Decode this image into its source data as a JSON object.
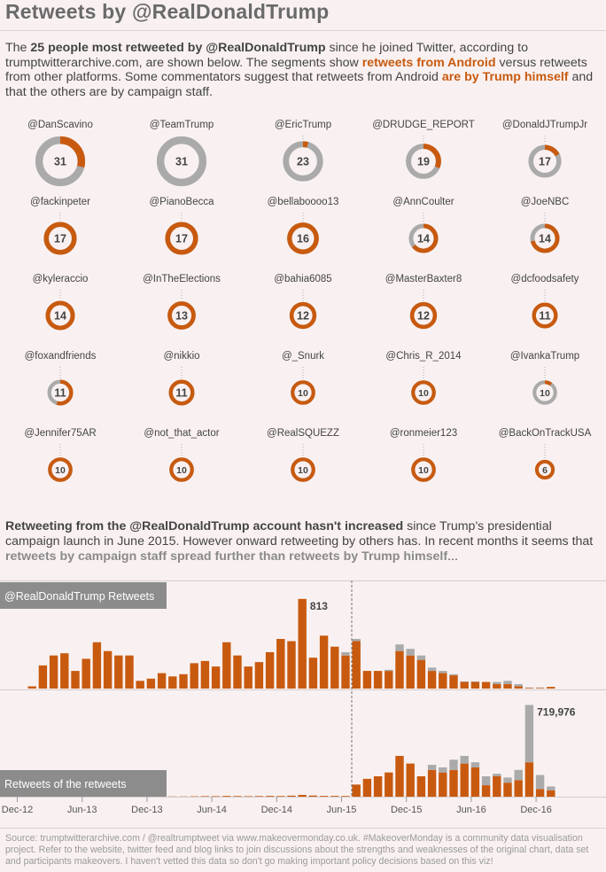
{
  "title": "Retweets by @RealDonaldTrump",
  "intro": {
    "t1": "The ",
    "b1": "25 people most retweeted by @RealDonaldTrump",
    "t2": " since he joined Twitter, according to trumptwitterarchive.com, are shown below. The segments show ",
    "o1": "retweets from Android",
    "t3": " versus retweets from other platforms. Some commentators suggest that retweets from Android ",
    "o2": "are by Trump himself",
    "t4": " and that the others are by campaign staff."
  },
  "colors": {
    "android": "#c85a0f",
    "other": "#aaaaaa",
    "text": "#444444",
    "label_bg": "#8c8c8c"
  },
  "donuts": [
    {
      "name": "@DanScavino",
      "total": 31,
      "android": 9
    },
    {
      "name": "@TeamTrump",
      "total": 31,
      "android": 0
    },
    {
      "name": "@EricTrump",
      "total": 23,
      "android": 1
    },
    {
      "name": "@DRUDGE_REPORT",
      "total": 19,
      "android": 6
    },
    {
      "name": "@DonaldJTrumpJr",
      "total": 17,
      "android": 3
    },
    {
      "name": "@fackinpeter",
      "total": 17,
      "android": 17
    },
    {
      "name": "@PianoBecca",
      "total": 17,
      "android": 17
    },
    {
      "name": "@bellaboooo13",
      "total": 16,
      "android": 16
    },
    {
      "name": "@AnnCoulter",
      "total": 14,
      "android": 9
    },
    {
      "name": "@JoeNBC",
      "total": 14,
      "android": 10
    },
    {
      "name": "@kyleraccio",
      "total": 14,
      "android": 14
    },
    {
      "name": "@InTheElections",
      "total": 13,
      "android": 13
    },
    {
      "name": "@bahia6085",
      "total": 12,
      "android": 12
    },
    {
      "name": "@MasterBaxter8",
      "total": 12,
      "android": 12
    },
    {
      "name": "@dcfoodsafety",
      "total": 11,
      "android": 11
    },
    {
      "name": "@foxandfriends",
      "total": 11,
      "android": 6
    },
    {
      "name": "@nikkio",
      "total": 11,
      "android": 11
    },
    {
      "name": "@_Snurk",
      "total": 10,
      "android": 10
    },
    {
      "name": "@Chris_R_2014",
      "total": 10,
      "android": 10
    },
    {
      "name": "@IvankaTrump",
      "total": 10,
      "android": 1
    },
    {
      "name": "@Jennifer75AR",
      "total": 10,
      "android": 10
    },
    {
      "name": "@not_that_actor",
      "total": 10,
      "android": 10
    },
    {
      "name": "@RealSQUEZZ",
      "total": 10,
      "android": 10
    },
    {
      "name": "@ronmeier123",
      "total": 10,
      "android": 10
    },
    {
      "name": "@BackOnTrackUSA",
      "total": 6,
      "android": 6
    }
  ],
  "mid_text": {
    "b1": "Retweeting from the @RealDonaldTrump account hasn't increased",
    "t1": " since Trump's presidential campaign launch in June 2015. However onward retweeting by others has. In recent months it seems that ",
    "g1": "retweets by campaign staff spread further than retweets by Trump himself",
    "t2": "..."
  },
  "chart_data": [
    {
      "type": "bar",
      "title": "@RealDonaldTrump Retweets",
      "annotation": "813",
      "months": [
        "Dec-12",
        "Jan-13",
        "Feb-13",
        "Mar-13",
        "Apr-13",
        "May-13",
        "Jun-13",
        "Jul-13",
        "Aug-13",
        "Sep-13",
        "Oct-13",
        "Nov-13",
        "Dec-13",
        "Jan-14",
        "Feb-14",
        "Mar-14",
        "Apr-14",
        "May-14",
        "Jun-14",
        "Jul-14",
        "Aug-14",
        "Sep-14",
        "Oct-14",
        "Nov-14",
        "Dec-14",
        "Jan-15",
        "Feb-15",
        "Mar-15",
        "Apr-15",
        "May-15",
        "Jun-15",
        "Jul-15",
        "Aug-15",
        "Sep-15",
        "Oct-15",
        "Nov-15",
        "Dec-15",
        "Jan-16",
        "Feb-16",
        "Mar-16",
        "Apr-16",
        "May-16",
        "Jun-16",
        "Jul-16",
        "Aug-16",
        "Sep-16",
        "Oct-16",
        "Nov-16",
        "Dec-16",
        "Jan-17"
      ],
      "series": [
        {
          "name": "Android",
          "values": [
            20,
            210,
            300,
            320,
            160,
            270,
            420,
            340,
            300,
            300,
            70,
            90,
            140,
            110,
            130,
            230,
            250,
            200,
            420,
            300,
            200,
            240,
            330,
            450,
            430,
            813,
            280,
            480,
            380,
            300,
            430,
            160,
            160,
            160,
            340,
            300,
            260,
            160,
            140,
            120,
            60,
            60,
            60,
            40,
            40,
            20,
            5,
            5,
            15,
            0
          ]
        },
        {
          "name": "Other",
          "values": [
            0,
            0,
            0,
            0,
            0,
            0,
            0,
            0,
            0,
            0,
            0,
            0,
            0,
            0,
            0,
            0,
            0,
            0,
            0,
            0,
            0,
            0,
            0,
            0,
            0,
            0,
            0,
            0,
            0,
            30,
            20,
            0,
            0,
            10,
            60,
            60,
            40,
            30,
            20,
            10,
            5,
            5,
            0,
            20,
            30,
            20,
            5,
            5,
            0,
            0
          ]
        }
      ],
      "ylim": [
        0,
        900
      ]
    },
    {
      "type": "bar",
      "title": "Retweets of the retweets",
      "annotation": "719,976",
      "months": [
        "Dec-12",
        "Jan-13",
        "Feb-13",
        "Mar-13",
        "Apr-13",
        "May-13",
        "Jun-13",
        "Jul-13",
        "Aug-13",
        "Sep-13",
        "Oct-13",
        "Nov-13",
        "Dec-13",
        "Jan-14",
        "Feb-14",
        "Mar-14",
        "Apr-14",
        "May-14",
        "Jun-14",
        "Jul-14",
        "Aug-14",
        "Sep-14",
        "Oct-14",
        "Nov-14",
        "Dec-14",
        "Jan-15",
        "Feb-15",
        "Mar-15",
        "Apr-15",
        "May-15",
        "Jun-15",
        "Jul-15",
        "Aug-15",
        "Sep-15",
        "Oct-15",
        "Nov-15",
        "Dec-15",
        "Jan-16",
        "Feb-16",
        "Mar-16",
        "Apr-16",
        "May-16",
        "Jun-16",
        "Jul-16",
        "Aug-16",
        "Sep-16",
        "Oct-16",
        "Nov-16",
        "Dec-16",
        "Jan-17"
      ],
      "series": [
        {
          "name": "Android",
          "values": [
            0,
            0,
            0,
            0,
            0,
            0,
            0,
            0,
            0,
            0,
            0,
            0,
            0,
            2000,
            2000,
            3000,
            4000,
            4000,
            6000,
            5000,
            4000,
            5000,
            6000,
            5000,
            8000,
            14000,
            9000,
            6000,
            6000,
            5000,
            95000,
            140000,
            160000,
            190000,
            320000,
            260000,
            160000,
            210000,
            190000,
            210000,
            260000,
            230000,
            90000,
            160000,
            110000,
            130000,
            270000,
            60000,
            50000,
            0
          ]
        },
        {
          "name": "Other",
          "values": [
            0,
            0,
            0,
            0,
            0,
            0,
            0,
            0,
            0,
            0,
            0,
            0,
            0,
            0,
            0,
            0,
            0,
            0,
            0,
            0,
            0,
            0,
            0,
            0,
            0,
            0,
            0,
            0,
            0,
            0,
            0,
            0,
            0,
            0,
            0,
            0,
            0,
            40000,
            40000,
            80000,
            60000,
            40000,
            70000,
            20000,
            40000,
            80000,
            450000,
            110000,
            30000,
            0
          ]
        }
      ],
      "ylim": [
        0,
        800000
      ]
    }
  ],
  "axis_ticks": [
    {
      "label": "Dec-12",
      "index": 0
    },
    {
      "label": "Jun-13",
      "index": 6
    },
    {
      "label": "Dec-13",
      "index": 12
    },
    {
      "label": "Jun-14",
      "index": 18
    },
    {
      "label": "Dec-14",
      "index": 24
    },
    {
      "label": "Jun-15",
      "index": 30
    },
    {
      "label": "Dec-15",
      "index": 36
    },
    {
      "label": "Jun-16",
      "index": 42
    },
    {
      "label": "Dec-16",
      "index": 48
    }
  ],
  "campaign_launch_index": 30,
  "footer": "Source: trumptwitterarchive.com / @realtrumptweet via www.makeovermonday.co.uk. #MakeoverMonday is a community data visualisation project. Refer to the website, twitter feed and blog links to join discussions about the strengths and weaknesses of the original chart, data set and participants makeovers. I haven't vetted this data so don't go making important policy decisions based on this viz!"
}
